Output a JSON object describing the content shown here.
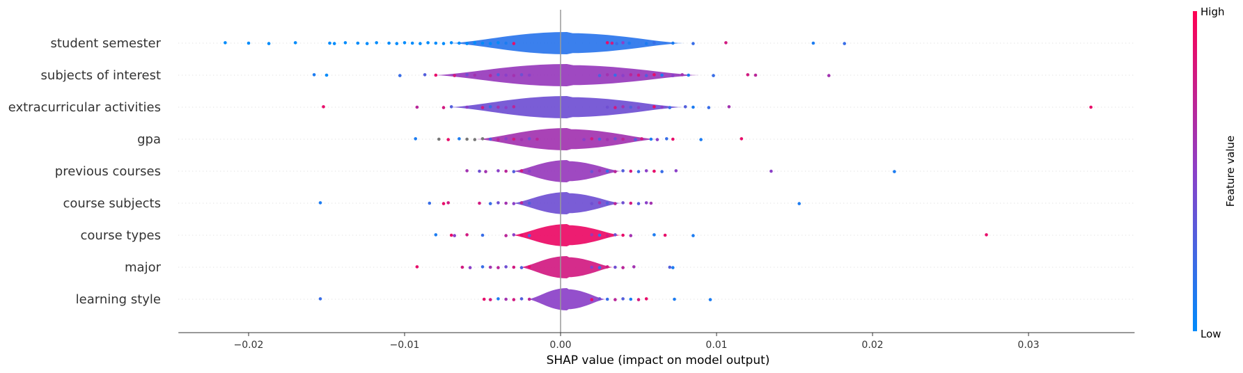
{
  "chart_data": {
    "type": "violin-beeswarm",
    "xlabel": "SHAP value (impact on model output)",
    "xlim": [
      -0.0245,
      0.0368
    ],
    "xticks": [
      -0.02,
      -0.01,
      0.0,
      0.01,
      0.02,
      0.03
    ],
    "xtick_labels": [
      "−0.02",
      "−0.01",
      "0.00",
      "0.01",
      "0.02",
      "0.03"
    ],
    "colorbar": {
      "title": "Feature value",
      "high_label": "High",
      "low_label": "Low",
      "low_color": "#008bfb",
      "high_color": "#ff0052"
    },
    "features": [
      {
        "name": "student semester",
        "dominant_color": 0.15,
        "spread": 0.0075,
        "points": [
          [
            -0.0215,
            0
          ],
          [
            -0.02,
            0
          ],
          [
            -0.0187,
            0
          ],
          [
            -0.017,
            0
          ],
          [
            -0.0148,
            0
          ],
          [
            -0.0145,
            0
          ],
          [
            -0.0138,
            0
          ],
          [
            -0.013,
            0
          ],
          [
            -0.0124,
            0
          ],
          [
            -0.0118,
            0
          ],
          [
            -0.011,
            0
          ],
          [
            -0.0105,
            0
          ],
          [
            -0.01,
            0
          ],
          [
            -0.0095,
            0
          ],
          [
            -0.009,
            0
          ],
          [
            -0.0085,
            0
          ],
          [
            -0.008,
            0
          ],
          [
            -0.0075,
            0
          ],
          [
            -0.007,
            0
          ],
          [
            -0.0065,
            0
          ],
          [
            -0.006,
            0
          ],
          [
            -0.0055,
            0
          ],
          [
            -0.005,
            0
          ],
          [
            -0.0045,
            0
          ],
          [
            -0.004,
            0
          ],
          [
            -0.0035,
            0.1
          ],
          [
            -0.003,
            0.9
          ],
          [
            0.003,
            0.9
          ],
          [
            0.0033,
            0.8
          ],
          [
            0.0036,
            0.2
          ],
          [
            0.004,
            0.5
          ],
          [
            0.0044,
            0.1
          ],
          [
            0.0055,
            0.1
          ],
          [
            0.006,
            0.2
          ],
          [
            0.0072,
            0.1
          ],
          [
            0.0085,
            0.2
          ],
          [
            0.0106,
            0.8
          ],
          [
            0.0162,
            0.1
          ],
          [
            0.0182,
            0.2
          ]
        ]
      },
      {
        "name": "subjects of interest",
        "dominant_color": 0.55,
        "spread": 0.0085,
        "points": [
          [
            -0.0158,
            0.1
          ],
          [
            -0.015,
            0
          ],
          [
            -0.0103,
            0.2
          ],
          [
            -0.0087,
            0.3
          ],
          [
            -0.008,
            0.9
          ],
          [
            -0.0068,
            0.8
          ],
          [
            -0.006,
            0.4
          ],
          [
            -0.0055,
            0.6
          ],
          [
            -0.0045,
            0.7
          ],
          [
            -0.004,
            0.3
          ],
          [
            -0.0035,
            0.5
          ],
          [
            -0.003,
            0.6
          ],
          [
            -0.0025,
            0.4
          ],
          [
            -0.002,
            0.5
          ],
          [
            0.0025,
            0.3
          ],
          [
            0.003,
            0.6
          ],
          [
            0.0035,
            0.2
          ],
          [
            0.004,
            0.5
          ],
          [
            0.0045,
            0.7
          ],
          [
            0.005,
            0.8
          ],
          [
            0.0055,
            0.3
          ],
          [
            0.006,
            0.9
          ],
          [
            0.0065,
            0.1
          ],
          [
            0.0072,
            0.5
          ],
          [
            0.0078,
            0.6
          ],
          [
            0.0082,
            0.1
          ],
          [
            0.0098,
            0.2
          ],
          [
            0.012,
            0.8
          ],
          [
            0.0125,
            0.7
          ],
          [
            0.0172,
            0.6
          ]
        ]
      },
      {
        "name": "extracurricular activities",
        "dominant_color": 0.4,
        "spread": 0.0075,
        "points": [
          [
            -0.0152,
            0.9
          ],
          [
            -0.0092,
            0.7
          ],
          [
            -0.0075,
            0.8
          ],
          [
            -0.007,
            0.3
          ],
          [
            -0.006,
            0.5
          ],
          [
            -0.005,
            0.8
          ],
          [
            -0.0045,
            0.2
          ],
          [
            -0.004,
            0.6
          ],
          [
            -0.0035,
            0.5
          ],
          [
            -0.003,
            0.7
          ],
          [
            0.003,
            0.4
          ],
          [
            0.0035,
            0.8
          ],
          [
            0.004,
            0.6
          ],
          [
            0.0045,
            0.3
          ],
          [
            0.005,
            0.5
          ],
          [
            0.006,
            0.9
          ],
          [
            0.0065,
            0.5
          ],
          [
            0.007,
            0.2
          ],
          [
            0.008,
            0.3
          ],
          [
            0.0085,
            0.1
          ],
          [
            0.0095,
            0.2
          ],
          [
            0.0108,
            0.6
          ],
          [
            0.034,
            0.9
          ]
        ]
      },
      {
        "name": "gpa",
        "dominant_color": 0.6,
        "spread": 0.0058,
        "points": [
          [
            -0.0093,
            0.1
          ],
          [
            -0.0078,
            "grey"
          ],
          [
            -0.0072,
            0.9
          ],
          [
            -0.0065,
            0.1
          ],
          [
            -0.006,
            "grey"
          ],
          [
            -0.0055,
            "grey"
          ],
          [
            -0.005,
            "grey"
          ],
          [
            -0.0045,
            0.3
          ],
          [
            -0.004,
            0.7
          ],
          [
            -0.0035,
            0.5
          ],
          [
            -0.003,
            0.8
          ],
          [
            -0.0025,
            0.6
          ],
          [
            -0.002,
            0.4
          ],
          [
            -0.0015,
            0.7
          ],
          [
            0.0015,
            0.5
          ],
          [
            0.002,
            0.8
          ],
          [
            0.0025,
            0.3
          ],
          [
            0.003,
            0.6
          ],
          [
            0.0035,
            0.4
          ],
          [
            0.004,
            0.7
          ],
          [
            0.0048,
            0.3
          ],
          [
            0.0052,
            0.8
          ],
          [
            0.0058,
            0.1
          ],
          [
            0.0062,
            0.5
          ],
          [
            0.0068,
            0.2
          ],
          [
            0.0072,
            0.9
          ],
          [
            0.009,
            0.1
          ],
          [
            0.0116,
            0.9
          ]
        ]
      },
      {
        "name": "previous courses",
        "dominant_color": 0.55,
        "spread": 0.0035,
        "points": [
          [
            -0.006,
            0.6
          ],
          [
            -0.0052,
            0.4
          ],
          [
            -0.0048,
            0.6
          ],
          [
            -0.004,
            0.5
          ],
          [
            -0.0035,
            0.7
          ],
          [
            -0.003,
            0.3
          ],
          [
            -0.0025,
            0.8
          ],
          [
            -0.002,
            0.5
          ],
          [
            0.002,
            0.4
          ],
          [
            0.0025,
            0.6
          ],
          [
            0.003,
            0.2
          ],
          [
            0.0035,
            0.7
          ],
          [
            0.004,
            0.3
          ],
          [
            0.0045,
            0.8
          ],
          [
            0.005,
            0.2
          ],
          [
            0.0055,
            0.5
          ],
          [
            0.006,
            0.9
          ],
          [
            0.0065,
            0.2
          ],
          [
            0.0074,
            0.5
          ],
          [
            0.0135,
            0.5
          ],
          [
            0.0214,
            0.1
          ]
        ]
      },
      {
        "name": "course subjects",
        "dominant_color": 0.4,
        "spread": 0.0035,
        "points": [
          [
            -0.0154,
            0.1
          ],
          [
            -0.0084,
            0.2
          ],
          [
            -0.0075,
            0.9
          ],
          [
            -0.0072,
            0.8
          ],
          [
            -0.0052,
            0.8
          ],
          [
            -0.0045,
            0.2
          ],
          [
            -0.004,
            0.4
          ],
          [
            -0.0035,
            0.6
          ],
          [
            -0.003,
            0.5
          ],
          [
            -0.0025,
            0.7
          ],
          [
            -0.002,
            0.3
          ],
          [
            0.002,
            0.4
          ],
          [
            0.0025,
            0.6
          ],
          [
            0.003,
            0.3
          ],
          [
            0.0035,
            0.7
          ],
          [
            0.004,
            0.4
          ],
          [
            0.0045,
            0.8
          ],
          [
            0.005,
            0.3
          ],
          [
            0.0055,
            0.5
          ],
          [
            0.0058,
            0.6
          ],
          [
            0.0153,
            0.1
          ]
        ]
      },
      {
        "name": "course types",
        "dominant_color": 0.92,
        "spread": 0.0035,
        "points": [
          [
            -0.008,
            0.1
          ],
          [
            -0.007,
            0.9
          ],
          [
            -0.0068,
            0.5
          ],
          [
            -0.006,
            0.8
          ],
          [
            -0.005,
            0.2
          ],
          [
            -0.0035,
            0.7
          ],
          [
            -0.003,
            0.5
          ],
          [
            -0.0025,
            0.9
          ],
          [
            -0.002,
            0.3
          ],
          [
            0.002,
            0.6
          ],
          [
            0.0025,
            0.2
          ],
          [
            0.003,
            0.8
          ],
          [
            0.0035,
            0.4
          ],
          [
            0.004,
            0.9
          ],
          [
            0.0045,
            0.6
          ],
          [
            0.006,
            0.1
          ],
          [
            0.0067,
            0.9
          ],
          [
            0.0085,
            0.1
          ],
          [
            0.0273,
            0.9
          ]
        ]
      },
      {
        "name": "major",
        "dominant_color": 0.8,
        "spread": 0.003,
        "points": [
          [
            -0.0092,
            0.9
          ],
          [
            -0.0063,
            0.8
          ],
          [
            -0.0058,
            0.5
          ],
          [
            -0.005,
            0.2
          ],
          [
            -0.0045,
            0.6
          ],
          [
            -0.004,
            0.7
          ],
          [
            -0.0035,
            0.4
          ],
          [
            -0.003,
            0.8
          ],
          [
            -0.0025,
            0.3
          ],
          [
            -0.002,
            0.9
          ],
          [
            0.002,
            0.5
          ],
          [
            0.0025,
            0.2
          ],
          [
            0.003,
            0.8
          ],
          [
            0.0035,
            0.4
          ],
          [
            0.004,
            0.7
          ],
          [
            0.0047,
            0.6
          ],
          [
            0.007,
            0.3
          ],
          [
            0.0072,
            0.1
          ]
        ]
      },
      {
        "name": "learning style",
        "dominant_color": 0.5,
        "spread": 0.0025,
        "points": [
          [
            -0.0154,
            0.2
          ],
          [
            -0.0049,
            0.9
          ],
          [
            -0.0045,
            0.8
          ],
          [
            -0.004,
            0.1
          ],
          [
            -0.0035,
            0.6
          ],
          [
            -0.003,
            0.8
          ],
          [
            -0.0025,
            0.3
          ],
          [
            -0.002,
            0.7
          ],
          [
            0.002,
            0.9
          ],
          [
            0.0025,
            0.4
          ],
          [
            0.003,
            0.2
          ],
          [
            0.0035,
            0.7
          ],
          [
            0.004,
            0.3
          ],
          [
            0.0045,
            0.1
          ],
          [
            0.005,
            0.8
          ],
          [
            0.0055,
            0.9
          ],
          [
            0.0073,
            0.1
          ],
          [
            0.0096,
            0.1
          ]
        ]
      }
    ]
  }
}
